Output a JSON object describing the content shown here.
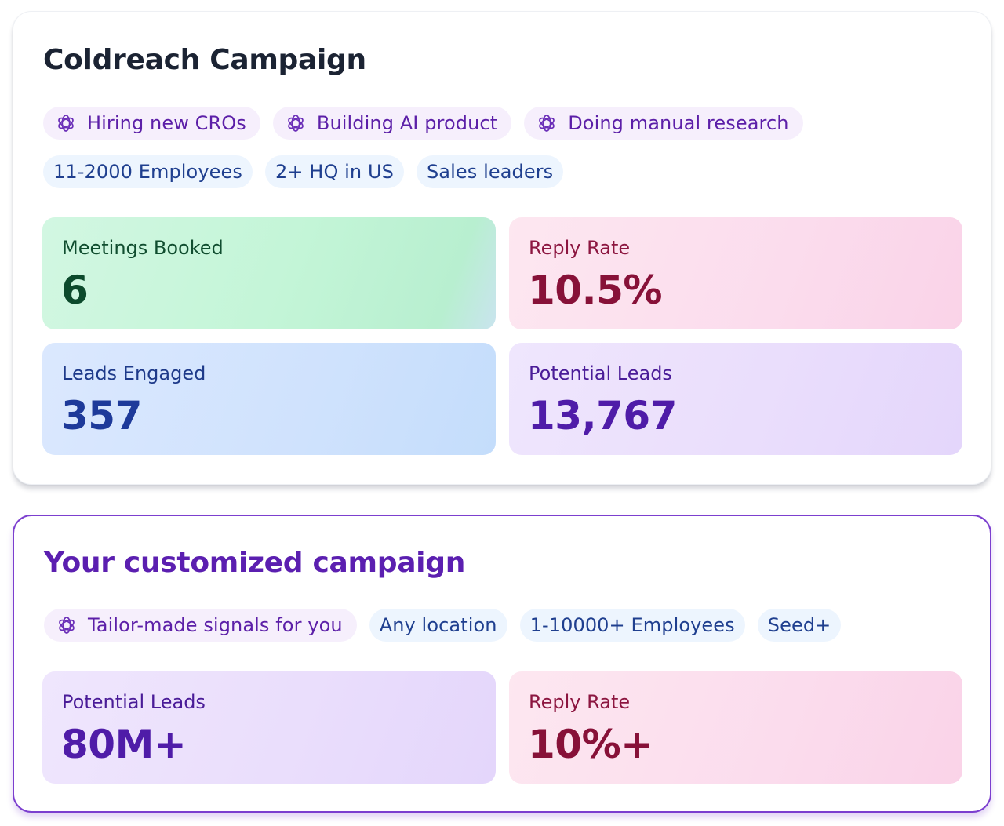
{
  "coldreach": {
    "title": "Coldreach Campaign",
    "signals": [
      {
        "label": "Hiring new CROs",
        "icon": "ai-spark-icon"
      },
      {
        "label": "Building AI product",
        "icon": "ai-spark-icon"
      },
      {
        "label": "Doing manual research",
        "icon": "ai-spark-icon"
      }
    ],
    "filters": [
      "11-2000 Employees",
      "2+ HQ in US",
      "Sales leaders"
    ],
    "metrics": [
      {
        "label": "Meetings Booked",
        "value": "6"
      },
      {
        "label": "Reply Rate",
        "value": "10.5%"
      },
      {
        "label": "Leads Engaged",
        "value": "357"
      },
      {
        "label": "Potential Leads",
        "value": "13,767"
      }
    ]
  },
  "customized": {
    "title": "Your customized campaign",
    "signals": [
      {
        "label": "Tailor-made signals for you",
        "icon": "ai-spark-icon"
      }
    ],
    "filters": [
      "Any location",
      "1-10000+ Employees",
      "Seed+"
    ],
    "metrics": [
      {
        "label": "Potential Leads",
        "value": "80M+"
      },
      {
        "label": "Reply Rate",
        "value": "10%+"
      }
    ]
  },
  "colors": {
    "custom_accent": "#7c3fcf",
    "signal_text": "#5c1fa8",
    "filter_text": "#1f3f8f"
  }
}
